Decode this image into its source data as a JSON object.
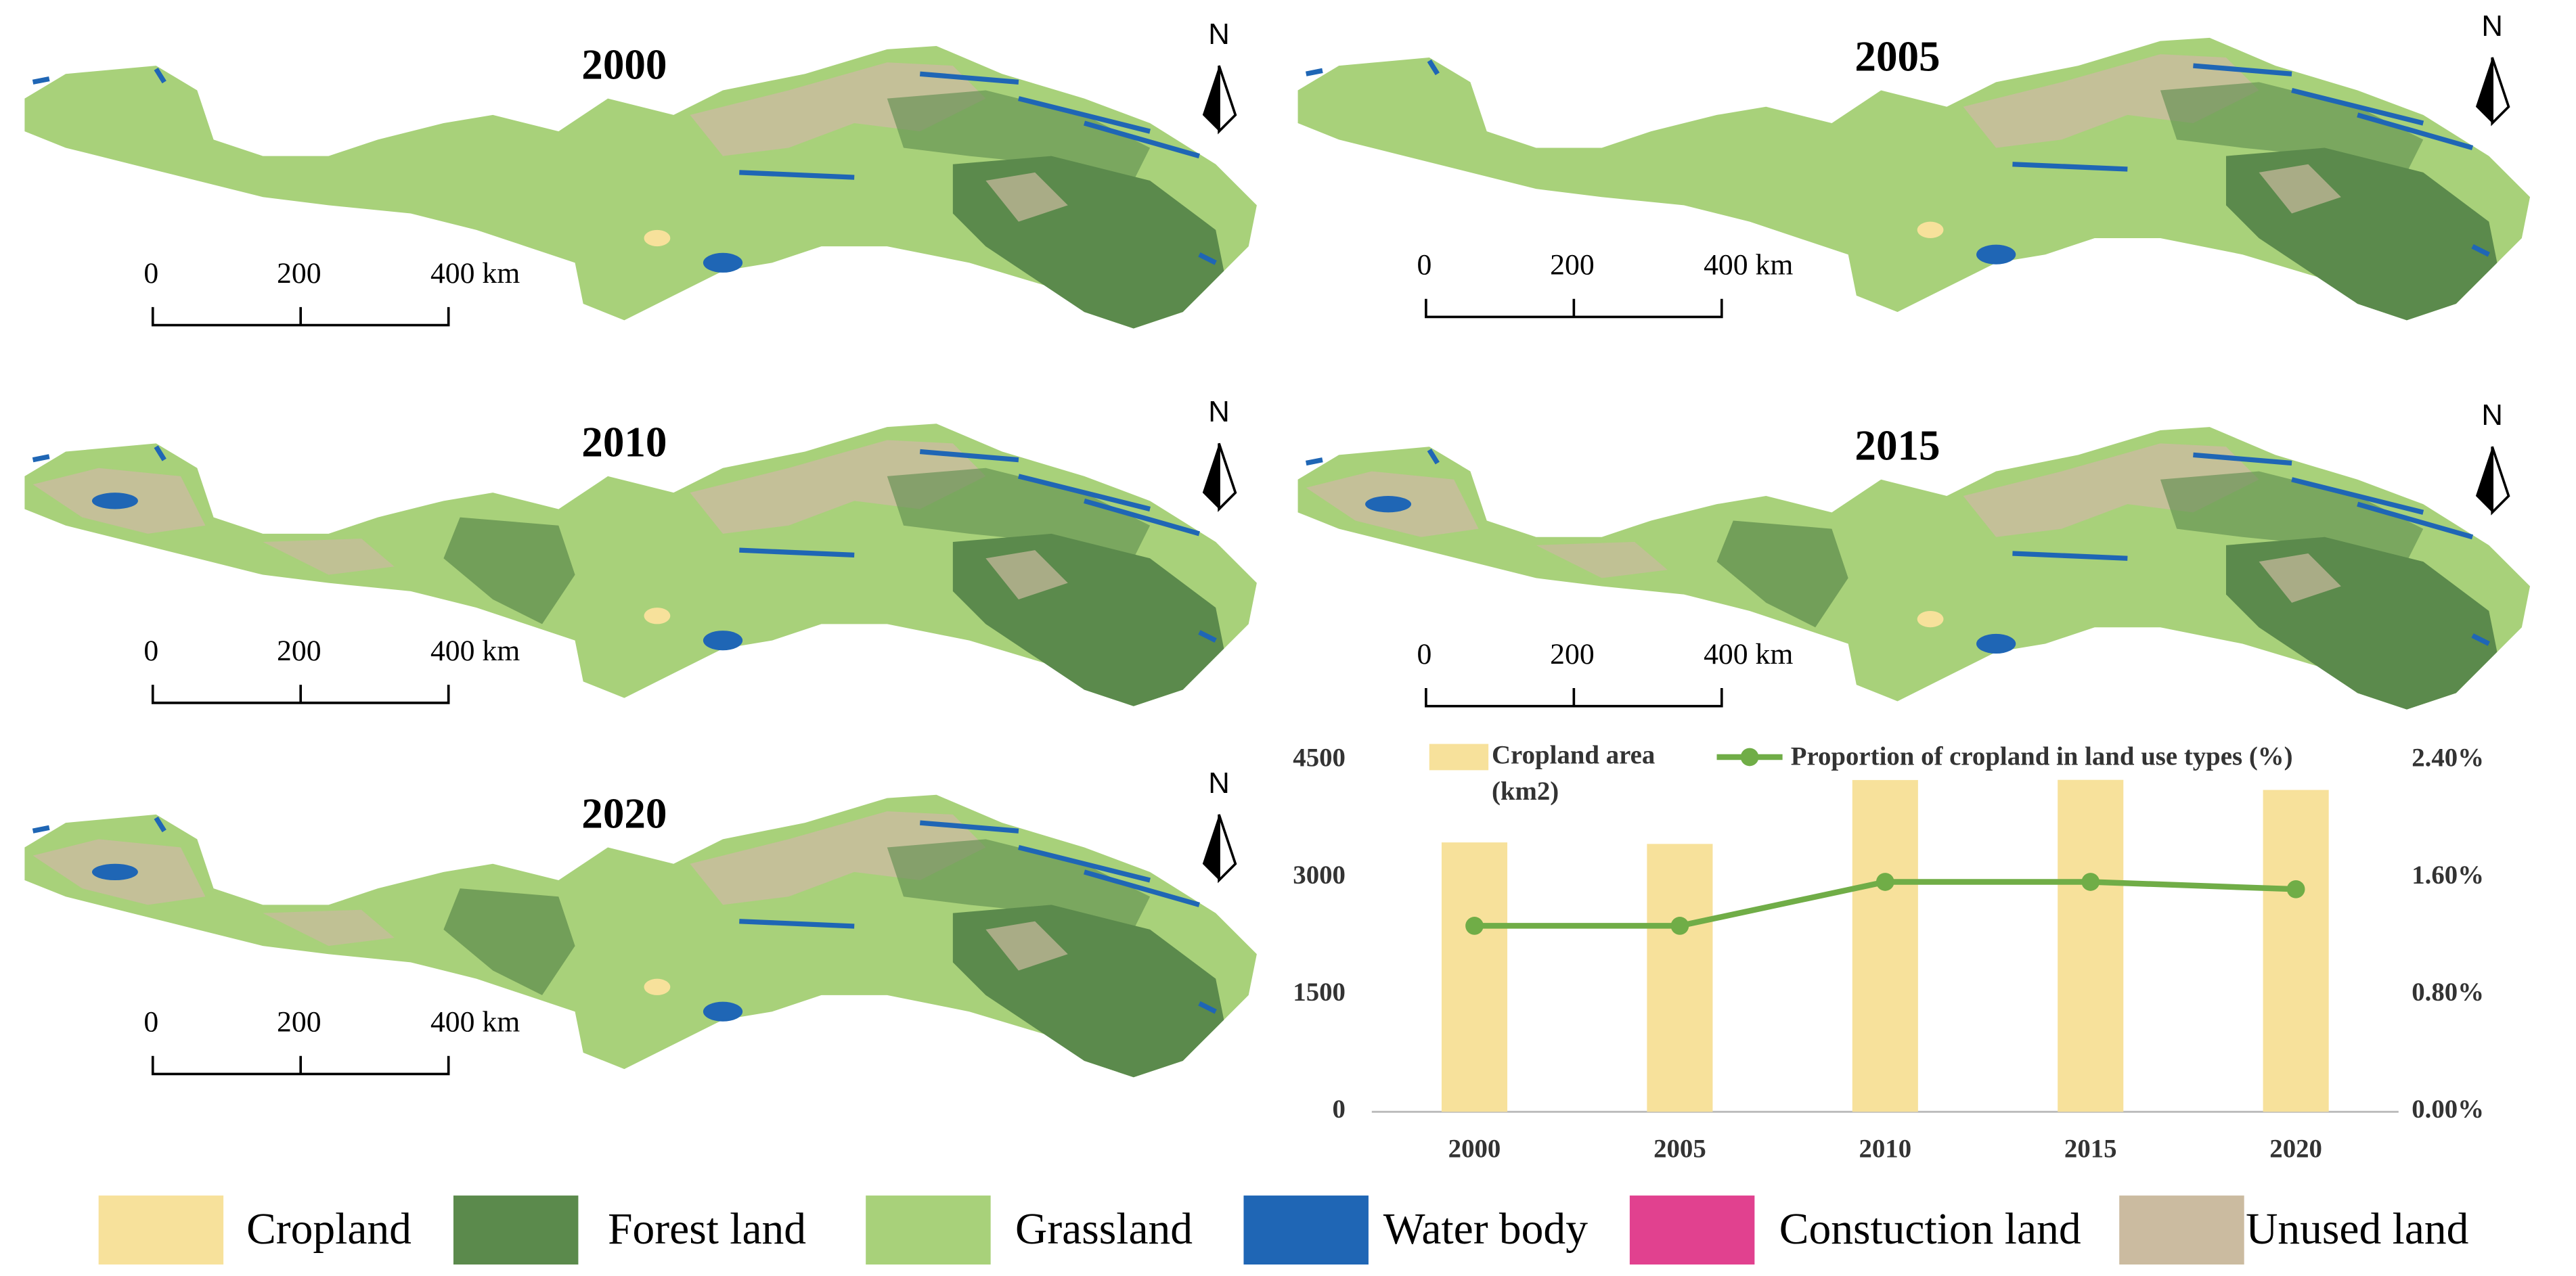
{
  "maps": [
    {
      "title": "2000",
      "north": "N",
      "scale_labels": [
        "0",
        "200",
        "400 km"
      ]
    },
    {
      "title": "2005",
      "north": "N",
      "scale_labels": [
        "0",
        "200",
        "400 km"
      ]
    },
    {
      "title": "2010",
      "north": "N",
      "scale_labels": [
        "0",
        "200",
        "400 km"
      ]
    },
    {
      "title": "2015",
      "north": "N",
      "scale_labels": [
        "0",
        "200",
        "400 km"
      ]
    },
    {
      "title": "2020",
      "north": "N",
      "scale_labels": [
        "0",
        "200",
        "400 km"
      ]
    }
  ],
  "legend": [
    {
      "name": "Cropland",
      "color": "#f7e19b"
    },
    {
      "name": "Forest land",
      "color": "#5b8a4c"
    },
    {
      "name": "Grassland",
      "color": "#a8d17a"
    },
    {
      "name": "Water body",
      "color": "#1f66b5"
    },
    {
      "name": "Constuction land",
      "color": "#e1418f"
    },
    {
      "name": "Unused land",
      "color": "#cbbba0"
    }
  ],
  "chart_data": {
    "type": "bar-line",
    "categories": [
      "2000",
      "2005",
      "2010",
      "2015",
      "2020"
    ],
    "series": [
      {
        "name": "Cropland area (km2)",
        "color": "#f7e19b",
        "type": "bar",
        "values": [
          3449,
          3430,
          4248,
          4250,
          4121
        ]
      },
      {
        "name": "Proportion of cropland in land use types (%)",
        "color": "#70ad47",
        "type": "line",
        "axis": "y2",
        "values": [
          1.27,
          1.27,
          1.57,
          1.57,
          1.52
        ]
      }
    ],
    "ylim": [
      0,
      4500
    ],
    "yticks": [
      0,
      1500,
      3000,
      4500
    ],
    "y2lim": [
      0,
      2.4
    ],
    "y2ticks": [
      {
        "value": 0,
        "label": "0.00%"
      },
      {
        "value": 0.8,
        "label": "0.80%"
      },
      {
        "value": 1.6,
        "label": "1.60%"
      },
      {
        "value": 2.4,
        "label": "2.40%"
      }
    ],
    "grid": false
  }
}
